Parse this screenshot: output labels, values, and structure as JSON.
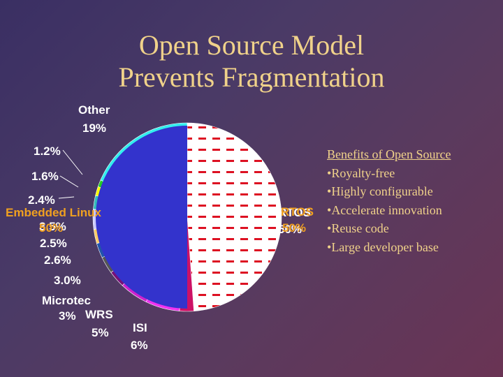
{
  "title": {
    "line1": "Open Source Model",
    "line2": "Prevents Fragmentation"
  },
  "benefits": {
    "heading": "Benefits of Open Source",
    "items": [
      "Royalty-free",
      "Highly configurable",
      "Accelerate innovation",
      "Reuse code",
      "Large developer base"
    ]
  },
  "chart_data": {
    "type": "pie",
    "slices": [
      {
        "label": "RTOS",
        "value": 50,
        "value_text": "50%",
        "color": "#ffffff",
        "pattern": "red-dash"
      },
      {
        "label": "",
        "value": 2.5,
        "value_text": "",
        "color": "#cc1166"
      },
      {
        "label": "ISI",
        "value": 6,
        "value_text": "6%",
        "color": "#ee33ee"
      },
      {
        "label": "WRS",
        "value": 5,
        "value_text": "5%",
        "color": "#cc22cc"
      },
      {
        "label": "Microtec",
        "value": 3,
        "value_text": "3%",
        "color": "#771177"
      },
      {
        "label": "",
        "value": 3.0,
        "value_text": "3.0%",
        "color": "#555555"
      },
      {
        "label": "",
        "value": 2.6,
        "value_text": "2.6%",
        "color": "#2255aa"
      },
      {
        "label": "",
        "value": 2.5,
        "value_text": "2.5%",
        "color": "#ffcc66"
      },
      {
        "label": "",
        "value": 3.5,
        "value_text": "3.5%",
        "color": "#ccccff"
      },
      {
        "label": "",
        "value": 2.4,
        "value_text": "2.4%",
        "color": "#33bbbb"
      },
      {
        "label": "",
        "value": 1.6,
        "value_text": "1.6%",
        "color": "#ffff00"
      },
      {
        "label": "",
        "value": 1.2,
        "value_text": "1.2%",
        "color": "#22cc22"
      },
      {
        "label": "Other",
        "value": 19,
        "value_text": "19%",
        "color": "#33eeee"
      }
    ],
    "overlay": {
      "label": "Embedded Linux",
      "value": 50,
      "value_text": "50%",
      "color": "#3333cc"
    },
    "overlay_right": {
      "label": "RTOS",
      "value_text": "50%"
    }
  },
  "colors": {
    "title": "#f0d28a",
    "overlay_text": "#f0a020",
    "label_text": "#ffffff"
  }
}
